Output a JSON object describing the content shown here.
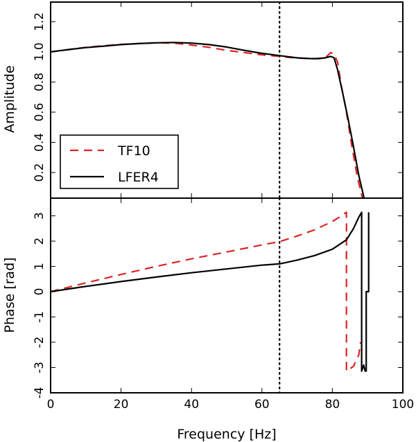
{
  "chart_data": [
    {
      "type": "line",
      "panel": "top",
      "ylabel": "Amplitude",
      "xlim": [
        0,
        100
      ],
      "ylim": [
        0.03,
        1.33
      ],
      "yticks": [
        0.2,
        0.4,
        0.6,
        0.8,
        1.0,
        1.2
      ],
      "ytick_labels": [
        "0.2",
        "0.4",
        "0.6",
        "0.8",
        "1.0",
        "1.2"
      ],
      "vline_x": 65,
      "legend": {
        "position": "lower-left",
        "entries": [
          "TF10",
          "LFER4"
        ]
      },
      "series": [
        {
          "name": "TF10",
          "color": "#dd2222",
          "style": "dashed",
          "x": [
            0,
            5,
            10,
            15,
            20,
            25,
            30,
            35,
            40,
            45,
            50,
            55,
            60,
            65,
            70,
            75,
            78,
            79.5,
            80.5,
            81.5,
            82.5,
            84,
            85.5,
            87,
            88.5
          ],
          "y": [
            1.0,
            1.015,
            1.03,
            1.04,
            1.05,
            1.055,
            1.06,
            1.058,
            1.045,
            1.03,
            1.01,
            0.995,
            0.98,
            0.97,
            0.958,
            0.955,
            0.96,
            0.995,
            0.985,
            0.93,
            0.78,
            0.6,
            0.38,
            0.18,
            0.03
          ]
        },
        {
          "name": "LFER4",
          "color": "#000000",
          "style": "solid",
          "x": [
            0,
            5,
            10,
            15,
            20,
            25,
            30,
            35,
            40,
            45,
            50,
            55,
            60,
            65,
            70,
            74,
            76,
            78,
            79.5,
            80.5,
            81.5,
            83,
            84.5,
            86,
            87.5,
            89
          ],
          "y": [
            1.0,
            1.015,
            1.028,
            1.038,
            1.048,
            1.055,
            1.06,
            1.062,
            1.058,
            1.048,
            1.032,
            1.01,
            0.99,
            0.975,
            0.96,
            0.955,
            0.955,
            0.96,
            0.97,
            0.96,
            0.88,
            0.72,
            0.55,
            0.37,
            0.18,
            0.03
          ]
        }
      ]
    },
    {
      "type": "line",
      "panel": "bottom",
      "xlabel": "Frequency [Hz]",
      "ylabel": "Phase [rad]",
      "xlim": [
        0,
        100
      ],
      "ylim": [
        -4,
        3.7
      ],
      "xticks": [
        0,
        20,
        40,
        60,
        80,
        100
      ],
      "xtick_labels": [
        "0",
        "20",
        "40",
        "60",
        "80",
        "100"
      ],
      "yticks": [
        -4,
        -3,
        -2,
        -1,
        0,
        1,
        2,
        3
      ],
      "ytick_labels": [
        "-4",
        "-3",
        "-2",
        "-1",
        "0",
        "1",
        "2",
        "3"
      ],
      "vline_x": 65,
      "series": [
        {
          "name": "TF10",
          "color": "#dd2222",
          "style": "dashed",
          "x": [
            0,
            10,
            20,
            30,
            40,
            50,
            60,
            65,
            70,
            75,
            80,
            82,
            83.5,
            84,
            84,
            86,
            87.5,
            88
          ],
          "y": [
            0,
            0.35,
            0.68,
            1.0,
            1.3,
            1.57,
            1.85,
            1.98,
            2.2,
            2.45,
            2.78,
            2.95,
            3.1,
            3.14,
            -3.14,
            -2.95,
            -2.5,
            -2.0
          ]
        },
        {
          "name": "LFER4",
          "color": "#000000",
          "style": "solid",
          "x": [
            0,
            10,
            20,
            30,
            40,
            50,
            60,
            65,
            70,
            75,
            80,
            84,
            86,
            87.5,
            88.3,
            88.3,
            88.9,
            89.3,
            89.6,
            89.6,
            90.3,
            90.3
          ],
          "y": [
            0,
            0.21,
            0.4,
            0.58,
            0.75,
            0.9,
            1.05,
            1.1,
            1.25,
            1.43,
            1.68,
            2.05,
            2.5,
            2.95,
            3.14,
            -3.14,
            -2.9,
            -3.14,
            -3.14,
            0.0,
            0.0,
            3.14
          ]
        }
      ]
    }
  ]
}
